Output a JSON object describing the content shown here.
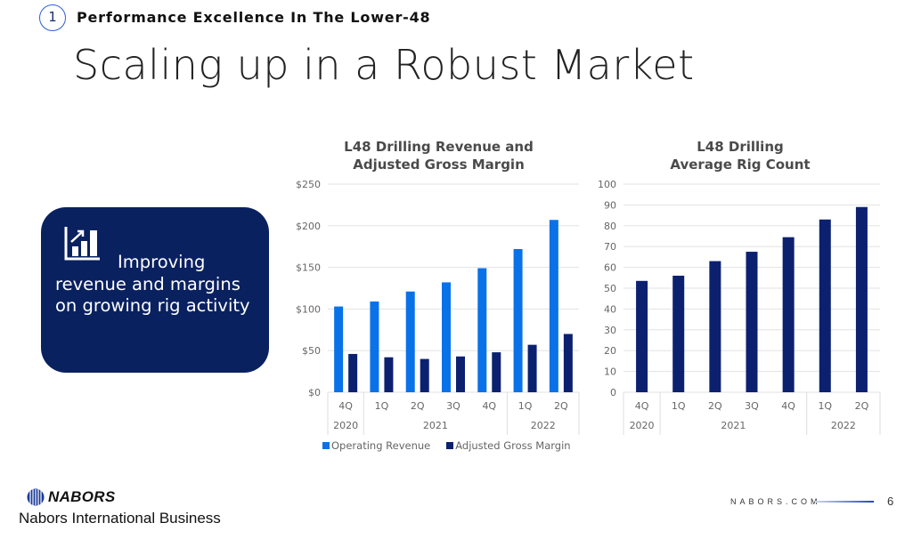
{
  "header": {
    "section_number": "1",
    "section_title": "Performance Excellence In The Lower-48",
    "title": "Scaling up in a Robust Market"
  },
  "callout": {
    "icon": "bar-chart-growth-icon",
    "lines": [
      "Improving",
      "revenue and margins",
      "on growing rig activity"
    ],
    "background": "#0a2160"
  },
  "footer": {
    "logo_text": "NABORS",
    "company": "Nabors International Business",
    "site": "NABORS.COM",
    "page": "6"
  },
  "colors": {
    "operating_revenue": "#0a72e8",
    "adjusted_gross_margin": "#0b2170",
    "rig_count": "#0b2170"
  },
  "chart_data": [
    {
      "type": "bar",
      "title_lines": [
        "L48 Drilling Revenue and",
        "Adjusted Gross Margin"
      ],
      "categories": [
        "4Q",
        "1Q",
        "2Q",
        "3Q",
        "4Q",
        "1Q",
        "2Q"
      ],
      "year_groups": [
        {
          "label": "2020",
          "span": 1
        },
        {
          "label": "2021",
          "span": 4
        },
        {
          "label": "2022",
          "span": 2
        }
      ],
      "ylim": [
        0,
        250
      ],
      "yticks": [
        0,
        50,
        100,
        150,
        200,
        250
      ],
      "ytick_labels": [
        "$0",
        "$50",
        "$100",
        "$150",
        "$200",
        "$250"
      ],
      "grid": true,
      "legend": "bottom",
      "series": [
        {
          "name": "Operating Revenue",
          "values": [
            103,
            109,
            121,
            132,
            149,
            172,
            207
          ]
        },
        {
          "name": "Adjusted Gross Margin",
          "values": [
            46,
            42,
            40,
            43,
            48,
            57,
            70
          ]
        }
      ]
    },
    {
      "type": "bar",
      "title_lines": [
        "L48 Drilling",
        "Average Rig Count"
      ],
      "categories": [
        "4Q",
        "1Q",
        "2Q",
        "3Q",
        "4Q",
        "1Q",
        "2Q"
      ],
      "year_groups": [
        {
          "label": "2020",
          "span": 1
        },
        {
          "label": "2021",
          "span": 4
        },
        {
          "label": "2022",
          "span": 2
        }
      ],
      "ylim": [
        0,
        100
      ],
      "yticks": [
        0,
        10,
        20,
        30,
        40,
        50,
        60,
        70,
        80,
        90,
        100
      ],
      "ytick_labels": [
        "0",
        "10",
        "20",
        "30",
        "40",
        "50",
        "60",
        "70",
        "80",
        "90",
        "100"
      ],
      "grid": true,
      "series": [
        {
          "values": [
            53.5,
            56,
            63,
            67.5,
            74.5,
            83,
            89
          ]
        }
      ]
    }
  ]
}
